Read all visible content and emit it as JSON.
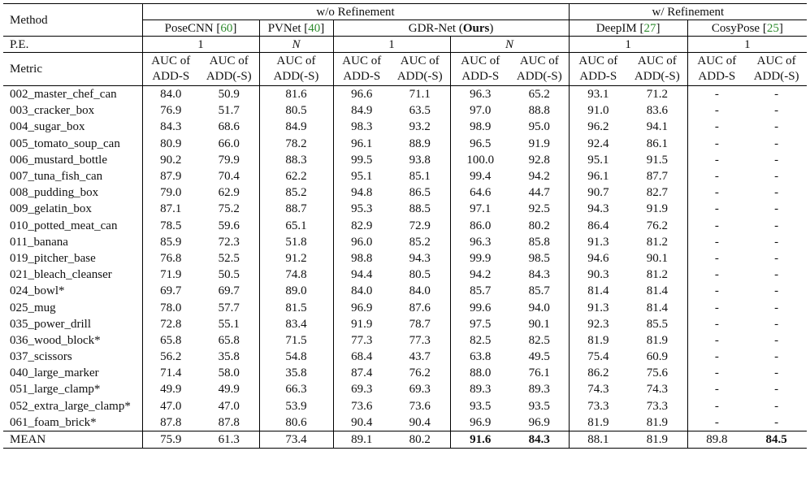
{
  "header": {
    "method_label": "Method",
    "group_wo": "w/o Refinement",
    "group_w": "w/ Refinement",
    "methods": [
      {
        "name": "PoseCNN",
        "cite": "60"
      },
      {
        "name": "PVNet",
        "cite": "40"
      },
      {
        "name": "GDR-Net",
        "suffix": "Ours"
      },
      {
        "name": "DeepIM",
        "cite": "27"
      },
      {
        "name": "CosyPose",
        "cite": "25"
      }
    ],
    "pe_label": "P.E.",
    "pe_values": [
      "1",
      "N",
      "1",
      "N",
      "1",
      "1"
    ],
    "metric_label": "Metric",
    "metric_adds_1": "AUC of",
    "metric_adds_2": "ADD-S",
    "metric_add_1": "AUC of",
    "metric_add_2": "ADD(-S)"
  },
  "rows": [
    {
      "name": "002_master_chef_can",
      "v": [
        "84.0",
        "50.9",
        "81.6",
        "96.6",
        "71.1",
        "96.3",
        "65.2",
        "93.1",
        "71.2",
        "-",
        "-"
      ]
    },
    {
      "name": "003_cracker_box",
      "v": [
        "76.9",
        "51.7",
        "80.5",
        "84.9",
        "63.5",
        "97.0",
        "88.8",
        "91.0",
        "83.6",
        "-",
        "-"
      ]
    },
    {
      "name": "004_sugar_box",
      "v": [
        "84.3",
        "68.6",
        "84.9",
        "98.3",
        "93.2",
        "98.9",
        "95.0",
        "96.2",
        "94.1",
        "-",
        "-"
      ]
    },
    {
      "name": "005_tomato_soup_can",
      "v": [
        "80.9",
        "66.0",
        "78.2",
        "96.1",
        "88.9",
        "96.5",
        "91.9",
        "92.4",
        "86.1",
        "-",
        "-"
      ]
    },
    {
      "name": "006_mustard_bottle",
      "v": [
        "90.2",
        "79.9",
        "88.3",
        "99.5",
        "93.8",
        "100.0",
        "92.8",
        "95.1",
        "91.5",
        "-",
        "-"
      ]
    },
    {
      "name": "007_tuna_fish_can",
      "v": [
        "87.9",
        "70.4",
        "62.2",
        "95.1",
        "85.1",
        "99.4",
        "94.2",
        "96.1",
        "87.7",
        "-",
        "-"
      ]
    },
    {
      "name": "008_pudding_box",
      "v": [
        "79.0",
        "62.9",
        "85.2",
        "94.8",
        "86.5",
        "64.6",
        "44.7",
        "90.7",
        "82.7",
        "-",
        "-"
      ]
    },
    {
      "name": "009_gelatin_box",
      "v": [
        "87.1",
        "75.2",
        "88.7",
        "95.3",
        "88.5",
        "97.1",
        "92.5",
        "94.3",
        "91.9",
        "-",
        "-"
      ]
    },
    {
      "name": "010_potted_meat_can",
      "v": [
        "78.5",
        "59.6",
        "65.1",
        "82.9",
        "72.9",
        "86.0",
        "80.2",
        "86.4",
        "76.2",
        "-",
        "-"
      ]
    },
    {
      "name": "011_banana",
      "v": [
        "85.9",
        "72.3",
        "51.8",
        "96.0",
        "85.2",
        "96.3",
        "85.8",
        "91.3",
        "81.2",
        "-",
        "-"
      ]
    },
    {
      "name": "019_pitcher_base",
      "v": [
        "76.8",
        "52.5",
        "91.2",
        "98.8",
        "94.3",
        "99.9",
        "98.5",
        "94.6",
        "90.1",
        "-",
        "-"
      ]
    },
    {
      "name": "021_bleach_cleanser",
      "v": [
        "71.9",
        "50.5",
        "74.8",
        "94.4",
        "80.5",
        "94.2",
        "84.3",
        "90.3",
        "81.2",
        "-",
        "-"
      ]
    },
    {
      "name": "024_bowl*",
      "v": [
        "69.7",
        "69.7",
        "89.0",
        "84.0",
        "84.0",
        "85.7",
        "85.7",
        "81.4",
        "81.4",
        "-",
        "-"
      ]
    },
    {
      "name": "025_mug",
      "v": [
        "78.0",
        "57.7",
        "81.5",
        "96.9",
        "87.6",
        "99.6",
        "94.0",
        "91.3",
        "81.4",
        "-",
        "-"
      ]
    },
    {
      "name": "035_power_drill",
      "v": [
        "72.8",
        "55.1",
        "83.4",
        "91.9",
        "78.7",
        "97.5",
        "90.1",
        "92.3",
        "85.5",
        "-",
        "-"
      ]
    },
    {
      "name": "036_wood_block*",
      "v": [
        "65.8",
        "65.8",
        "71.5",
        "77.3",
        "77.3",
        "82.5",
        "82.5",
        "81.9",
        "81.9",
        "-",
        "-"
      ]
    },
    {
      "name": "037_scissors",
      "v": [
        "56.2",
        "35.8",
        "54.8",
        "68.4",
        "43.7",
        "63.8",
        "49.5",
        "75.4",
        "60.9",
        "-",
        "-"
      ]
    },
    {
      "name": "040_large_marker",
      "v": [
        "71.4",
        "58.0",
        "35.8",
        "87.4",
        "76.2",
        "88.0",
        "76.1",
        "86.2",
        "75.6",
        "-",
        "-"
      ]
    },
    {
      "name": "051_large_clamp*",
      "v": [
        "49.9",
        "49.9",
        "66.3",
        "69.3",
        "69.3",
        "89.3",
        "89.3",
        "74.3",
        "74.3",
        "-",
        "-"
      ]
    },
    {
      "name": "052_extra_large_clamp*",
      "v": [
        "47.0",
        "47.0",
        "53.9",
        "73.6",
        "73.6",
        "93.5",
        "93.5",
        "73.3",
        "73.3",
        "-",
        "-"
      ]
    },
    {
      "name": "061_foam_brick*",
      "v": [
        "87.8",
        "87.8",
        "80.6",
        "90.4",
        "90.4",
        "96.9",
        "96.9",
        "81.9",
        "81.9",
        "-",
        "-"
      ]
    }
  ],
  "mean": {
    "name": "MEAN",
    "v": [
      "75.9",
      "61.3",
      "73.4",
      "89.1",
      "80.2",
      "91.6",
      "84.3",
      "88.1",
      "81.9",
      "89.8",
      "84.5"
    ],
    "bold_idx": [
      5,
      6,
      10
    ]
  }
}
